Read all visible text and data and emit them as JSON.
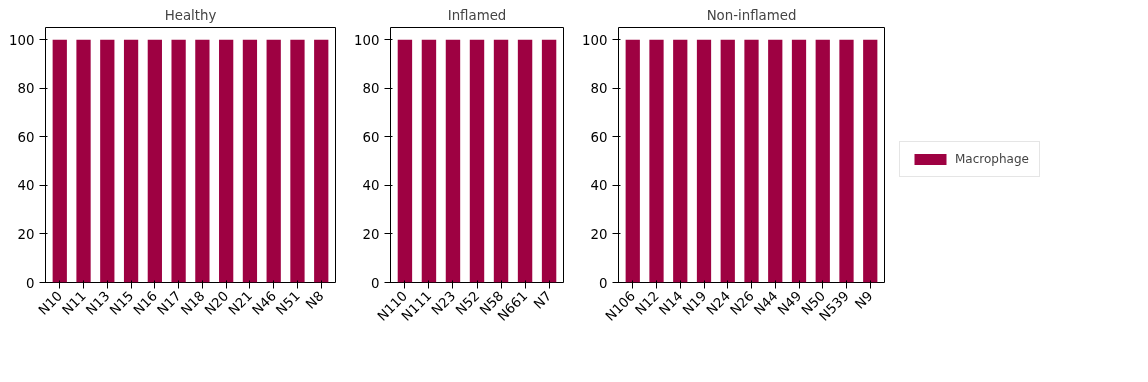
{
  "chart_data": [
    {
      "type": "bar",
      "title": "Healthy",
      "categories": [
        "N10",
        "N11",
        "N13",
        "N15",
        "N16",
        "N17",
        "N18",
        "N20",
        "N21",
        "N46",
        "N51",
        "N8"
      ],
      "series": [
        {
          "color": "#9e0142",
          "values": [
            100,
            100,
            100,
            100,
            100,
            100,
            100,
            100,
            100,
            100,
            100,
            100
          ]
        }
      ],
      "ylim": [
        0,
        105
      ],
      "yticks": [
        0,
        20,
        40,
        60,
        80,
        100
      ]
    },
    {
      "type": "bar",
      "title": "Inflamed",
      "categories": [
        "N110",
        "N111",
        "N23",
        "N52",
        "N58",
        "N661",
        "N7"
      ],
      "series": [
        {
          "color": "#9e0142",
          "values": [
            100,
            100,
            100,
            100,
            100,
            100,
            100
          ]
        }
      ],
      "ylim": [
        0,
        105
      ],
      "yticks": [
        0,
        20,
        40,
        60,
        80,
        100
      ]
    },
    {
      "type": "bar",
      "title": "Non-inflamed",
      "categories": [
        "N106",
        "N12",
        "N14",
        "N19",
        "N24",
        "N26",
        "N44",
        "N49",
        "N50",
        "N539",
        "N9"
      ],
      "series": [
        {
          "name": "Macrophage",
          "color": "#9e0142",
          "values": [
            100,
            100,
            100,
            100,
            100,
            100,
            100,
            100,
            100,
            100,
            100
          ]
        }
      ],
      "ylim": [
        0,
        105
      ],
      "yticks": [
        0,
        20,
        40,
        60,
        80,
        100
      ],
      "legend": "right"
    }
  ]
}
